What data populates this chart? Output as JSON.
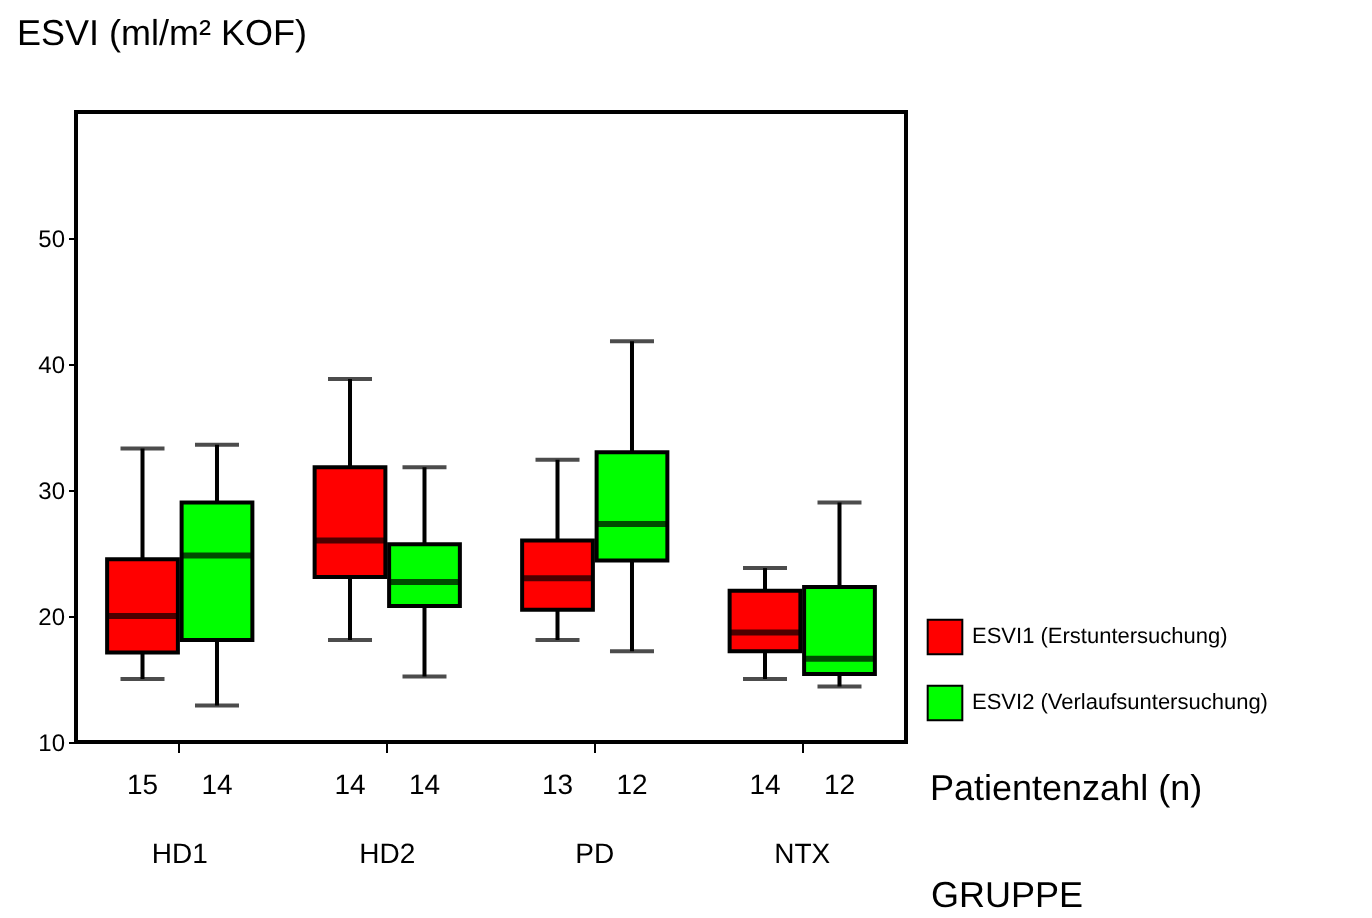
{
  "chart_data": {
    "type": "box",
    "ylabel": "ESVI (ml/m² KOF)",
    "xlabel": "GRUPPE",
    "categories": [
      "HD1",
      "HD2",
      "PD",
      "NTX"
    ],
    "ylim": [
      10,
      60
    ],
    "yticks": [
      10,
      20,
      30,
      40,
      50
    ],
    "grid": false,
    "legend": "bottom right",
    "series": [
      {
        "name": "ESVI1 (Erstuntersuchung)",
        "color": "#ff0000",
        "boxes": [
          {
            "low": 15.0,
            "q1": 17.1,
            "median": 20.0,
            "q3": 24.5,
            "high": 33.3
          },
          {
            "low": 18.1,
            "q1": 23.1,
            "median": 26.0,
            "q3": 31.8,
            "high": 38.8
          },
          {
            "low": 18.1,
            "q1": 20.5,
            "median": 23.0,
            "q3": 26.0,
            "high": 32.4
          },
          {
            "low": 15.0,
            "q1": 17.2,
            "median": 18.7,
            "q3": 22.0,
            "high": 23.8
          }
        ]
      },
      {
        "name": "ESVI2 (Verlaufsuntersuchung)",
        "color": "#00ff00",
        "boxes": [
          {
            "low": 12.9,
            "q1": 18.1,
            "median": 24.8,
            "q3": 29.0,
            "high": 33.6
          },
          {
            "low": 15.2,
            "q1": 20.8,
            "median": 22.7,
            "q3": 25.7,
            "high": 31.8
          },
          {
            "low": 17.2,
            "q1": 24.4,
            "median": 27.3,
            "q3": 33.0,
            "high": 41.8
          },
          {
            "low": 14.4,
            "q1": 15.4,
            "median": 16.6,
            "q3": 22.3,
            "high": 29.0
          }
        ]
      }
    ],
    "annotations": [
      "15",
      "14",
      "14",
      "14",
      "13",
      "12",
      "14",
      "12",
      "Patientenzahl (n)"
    ]
  }
}
